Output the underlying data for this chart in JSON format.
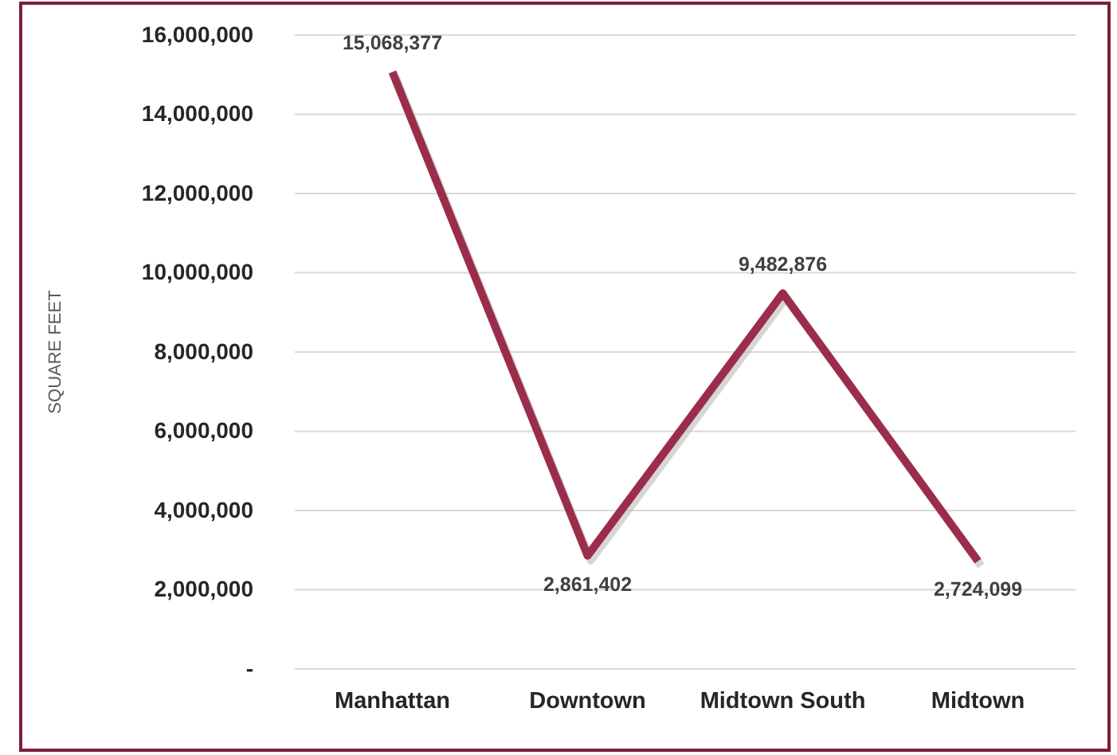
{
  "chart_data": {
    "type": "line",
    "ylabel": "SQUARE FEET",
    "categories": [
      "Manhattan",
      "Downtown",
      "Midtown South",
      "Midtown"
    ],
    "series": [
      {
        "color": "#9b2d4b",
        "values": [
          15068377,
          2861402,
          9482876,
          2724099
        ],
        "value_labels": [
          "15,068,377",
          "2,861,402",
          "9,482,876",
          "2,724,099"
        ]
      }
    ],
    "ylim": [
      0,
      16000000
    ],
    "yticks": [
      {
        "value": 0,
        "label": "-"
      },
      {
        "value": 2000000,
        "label": "2,000,000"
      },
      {
        "value": 4000000,
        "label": "4,000,000"
      },
      {
        "value": 6000000,
        "label": "6,000,000"
      },
      {
        "value": 8000000,
        "label": "8,000,000"
      },
      {
        "value": 10000000,
        "label": "10,000,000"
      },
      {
        "value": 12000000,
        "label": "12,000,000"
      },
      {
        "value": 14000000,
        "label": "14,000,000"
      },
      {
        "value": 16000000,
        "label": "16,000,000"
      }
    ],
    "grid": "y",
    "line_style": "solid",
    "marker": "none"
  }
}
